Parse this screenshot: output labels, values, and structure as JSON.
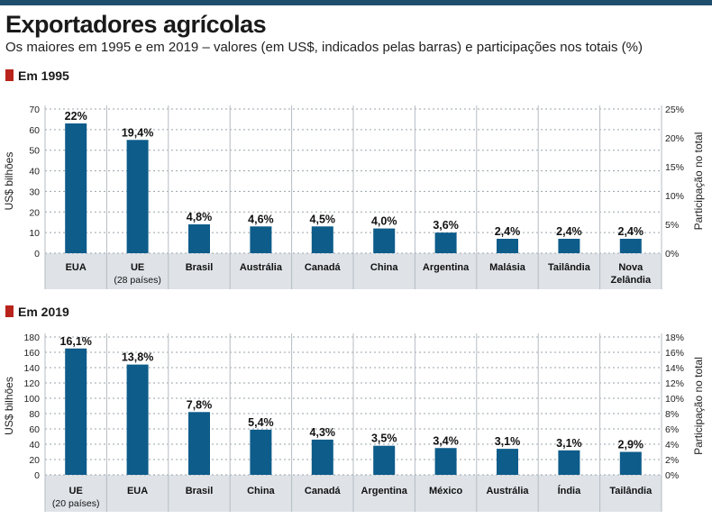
{
  "title": "Exportadores agrícolas",
  "subtitle": "Os maiores em 1995 e em 2019 – valores (em US$, indicados pelas barras) e participações nos totais (%)",
  "colors": {
    "bar": "#0d5c8a",
    "band": "#dfe3e8",
    "accent": "#b8231c",
    "topbar": "#1e4e6e"
  },
  "chart_data": [
    {
      "type": "bar",
      "section_title": "Em 1995",
      "categories": [
        [
          "EUA"
        ],
        [
          "UE",
          "(28 países)"
        ],
        [
          "Brasil"
        ],
        [
          "Austrália"
        ],
        [
          "Canadá"
        ],
        [
          "China"
        ],
        [
          "Argentina"
        ],
        [
          "Malásia"
        ],
        [
          "Tailândia"
        ],
        [
          "Nova",
          "Zelândia"
        ]
      ],
      "values": [
        63,
        55,
        14,
        13,
        13,
        12,
        10,
        7,
        7,
        7
      ],
      "shares": [
        "22%",
        "19,4%",
        "4,8%",
        "4,6%",
        "4,5%",
        "4,0%",
        "3,6%",
        "2,4%",
        "2,4%",
        "2,4%"
      ],
      "ylabel": "US$ bilhões",
      "y2label": "Participação no total",
      "ylim": [
        0,
        70
      ],
      "yticks": [
        "0",
        "10",
        "20",
        "30",
        "40",
        "50",
        "60",
        "70"
      ],
      "y2ticks": [
        "0%",
        "5%",
        "10%",
        "15%",
        "20%",
        "25%"
      ],
      "grid": true
    },
    {
      "type": "bar",
      "section_title": "Em 2019",
      "categories": [
        [
          "UE",
          "(20 países)"
        ],
        [
          "EUA"
        ],
        [
          "Brasil"
        ],
        [
          "China"
        ],
        [
          "Canadá"
        ],
        [
          "Argentina"
        ],
        [
          "México"
        ],
        [
          "Austrália"
        ],
        [
          "Índia"
        ],
        [
          "Tailândia"
        ]
      ],
      "values": [
        165,
        144,
        82,
        59,
        46,
        38,
        35,
        34,
        32,
        30
      ],
      "shares": [
        "16,1%",
        "13,8%",
        "7,8%",
        "5,4%",
        "4,3%",
        "3,5%",
        "3,4%",
        "3,1%",
        "3,1%",
        "2,9%"
      ],
      "ylabel": "US$ bilhões",
      "y2label": "Participação no total",
      "ylim": [
        0,
        180
      ],
      "yticks": [
        "0",
        "20",
        "40",
        "60",
        "80",
        "100",
        "120",
        "140",
        "160",
        "180"
      ],
      "y2ticks": [
        "0%",
        "2%",
        "4%",
        "6%",
        "8%",
        "10%",
        "12%",
        "14%",
        "16%",
        "18%"
      ],
      "grid": true
    }
  ]
}
